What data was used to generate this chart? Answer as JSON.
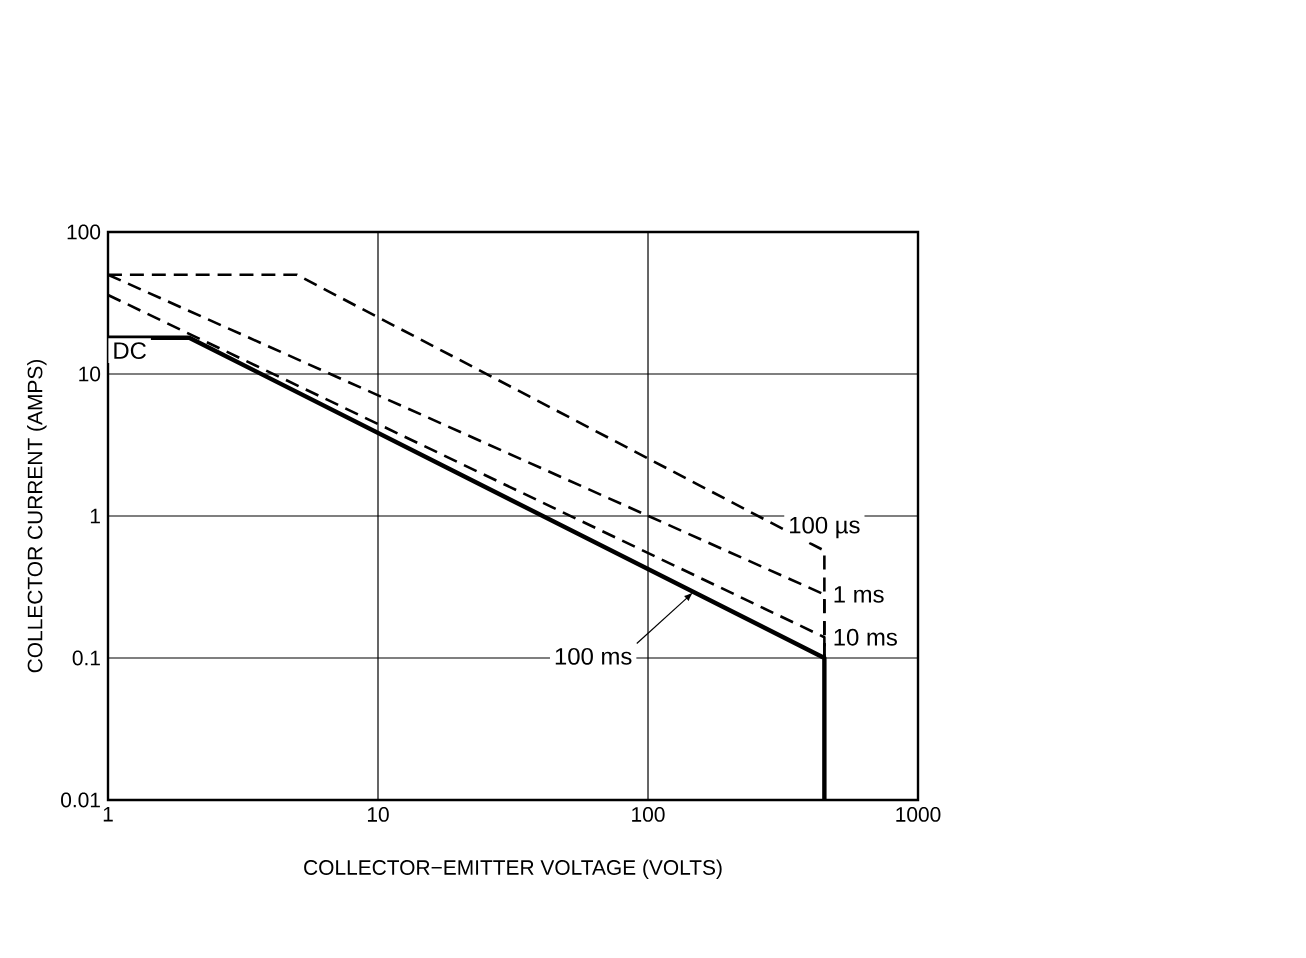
{
  "chart_data": {
    "type": "line",
    "xlabel": "COLLECTOR−EMITTER VOLTAGE (VOLTS)",
    "ylabel": "COLLECTOR CURRENT (AMPS)",
    "log": "xy",
    "grid": true,
    "xlim": [
      1,
      1000
    ],
    "ylim": [
      0.01,
      100
    ],
    "xticks": [
      1,
      10,
      100,
      1000
    ],
    "yticks": [
      0.01,
      0.1,
      1,
      10,
      100
    ],
    "series": [
      {
        "name": "100 µs",
        "color": "#000000",
        "line_style": "dashed",
        "x": [
          1,
          5,
          450,
          450
        ],
        "values": [
          50,
          50,
          0.57,
          0.1
        ]
      },
      {
        "name": "1 ms",
        "color": "#000000",
        "line_style": "dashed",
        "x": [
          1,
          450,
          450
        ],
        "values": [
          50,
          0.28,
          0.1
        ]
      },
      {
        "name": "10 ms",
        "color": "#000000",
        "line_style": "dashed",
        "x": [
          1,
          450,
          450
        ],
        "values": [
          36,
          0.14,
          0.1
        ]
      },
      {
        "name": "DC",
        "color": "#000000",
        "line_style": "solid",
        "x": [
          1,
          2,
          450,
          450
        ],
        "values": [
          18,
          18,
          0.1,
          0.01
        ]
      }
    ],
    "annotations": [
      {
        "text": "100 ms",
        "x": 147,
        "y": 0.29
      }
    ]
  }
}
